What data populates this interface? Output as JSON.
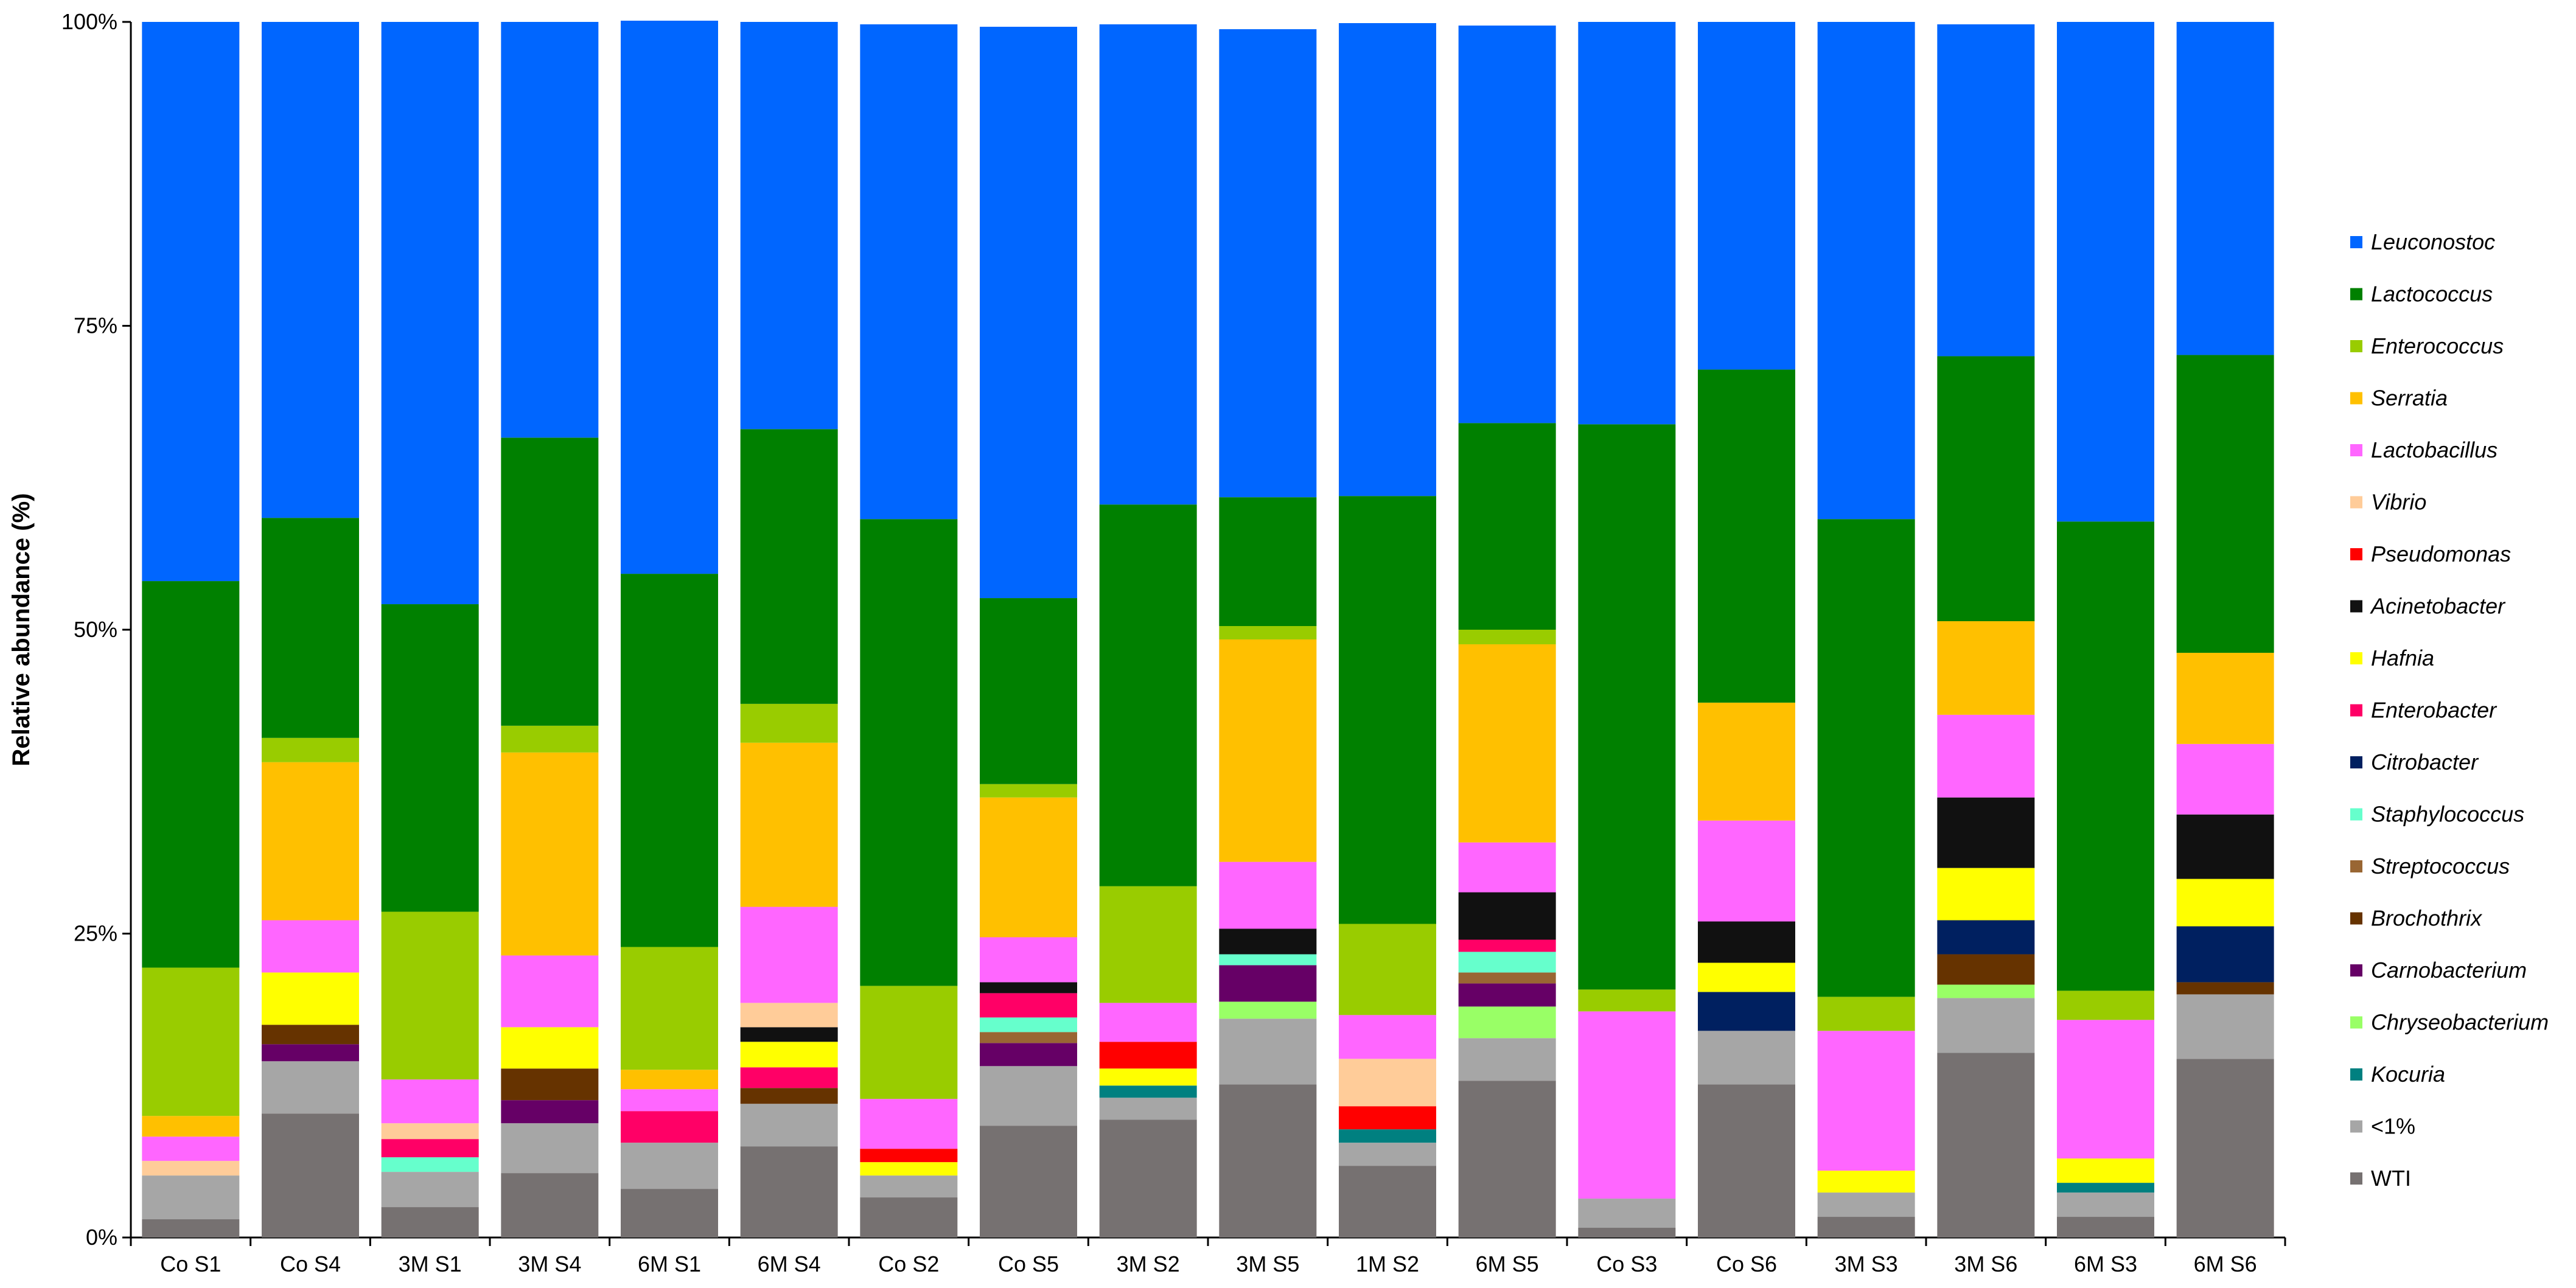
{
  "chart_data": {
    "type": "bar",
    "stacked": true,
    "ylabel": "Relative abundance (%)",
    "ylim": [
      0,
      100
    ],
    "yticks": [
      "0%",
      "25%",
      "50%",
      "75%",
      "100%"
    ],
    "categories": [
      "Co S1",
      "Co S4",
      "3M S1",
      "3M S4",
      "6M S1",
      "6M S4",
      "Co S2",
      "Co S5",
      "3M S2",
      "3M S5",
      "1M S2",
      "6M S5",
      "Co S3",
      "Co S6",
      "3M S3",
      "3M S6",
      "6M S3",
      "6M S6"
    ],
    "legend_position": "right",
    "series": [
      {
        "name": "WTI",
        "italic": false,
        "color": "#767171",
        "values": [
          1.5,
          10.2,
          2.5,
          5.3,
          4.0,
          7.5,
          3.3,
          9.2,
          9.7,
          12.6,
          5.9,
          12.9,
          0.8,
          12.6,
          1.7,
          15.2,
          1.7,
          14.7
        ]
      },
      {
        "name": "<1%",
        "italic": false,
        "color": "#a6a6a6",
        "values": [
          3.6,
          4.3,
          2.9,
          4.1,
          3.8,
          3.5,
          1.8,
          4.9,
          1.8,
          5.4,
          1.9,
          3.5,
          2.4,
          4.4,
          2.0,
          4.5,
          2.0,
          5.3
        ]
      },
      {
        "name": "Kocuria",
        "italic": true,
        "color": "#008080",
        "values": [
          0,
          0,
          0,
          0,
          0,
          0,
          0,
          0,
          1.0,
          0,
          1.1,
          0,
          0,
          0,
          0,
          0,
          0.8,
          0
        ]
      },
      {
        "name": "Chryseobacterium",
        "italic": true,
        "color": "#99ff66",
        "values": [
          0,
          0,
          0,
          0,
          0,
          0,
          0,
          0,
          0,
          1.4,
          0,
          2.6,
          0,
          0,
          0,
          1.1,
          0,
          0
        ]
      },
      {
        "name": "Carnobacterium",
        "italic": true,
        "color": "#660066",
        "values": [
          0,
          1.4,
          0,
          1.9,
          0,
          0,
          0,
          1.9,
          0,
          3.0,
          0,
          1.9,
          0,
          0,
          0,
          0,
          0,
          0
        ]
      },
      {
        "name": "Brochothrix",
        "italic": true,
        "color": "#663300",
        "values": [
          0,
          1.6,
          0,
          2.6,
          0,
          1.3,
          0,
          0,
          0,
          0,
          0,
          0,
          0,
          0,
          0,
          2.5,
          0,
          1.0
        ]
      },
      {
        "name": "Streptococcus",
        "italic": true,
        "color": "#996633",
        "values": [
          0,
          0,
          0,
          0,
          0,
          0,
          0,
          0.9,
          0,
          0,
          0,
          0.9,
          0,
          0,
          0,
          0,
          0,
          0
        ]
      },
      {
        "name": "Staphylococcus",
        "italic": true,
        "color": "#66ffcc",
        "values": [
          0,
          0,
          1.2,
          0,
          0,
          0,
          0,
          1.2,
          0,
          0.9,
          0,
          1.7,
          0,
          0,
          0,
          0,
          0,
          0
        ]
      },
      {
        "name": "Citrobacter",
        "italic": true,
        "color": "#002060",
        "values": [
          0,
          0,
          0,
          0,
          0,
          0,
          0,
          0,
          0,
          0,
          0,
          0,
          0,
          3.2,
          0,
          2.8,
          0,
          4.6
        ]
      },
      {
        "name": "Enterobacter",
        "italic": true,
        "color": "#ff0066",
        "values": [
          0,
          0,
          1.5,
          0,
          2.6,
          1.7,
          0,
          2.0,
          0,
          0,
          0,
          1.0,
          0,
          0,
          0,
          0,
          0,
          0
        ]
      },
      {
        "name": "Hafnia",
        "italic": true,
        "color": "#ffff00",
        "values": [
          0,
          4.3,
          0,
          3.4,
          0,
          2.1,
          1.1,
          0,
          1.4,
          0,
          0,
          0,
          0,
          2.4,
          1.8,
          4.3,
          2.0,
          3.9
        ]
      },
      {
        "name": "Acinetobacter",
        "italic": true,
        "color": "#111111",
        "values": [
          0,
          0,
          0,
          0,
          0,
          1.2,
          0,
          0.9,
          0,
          2.1,
          0,
          3.9,
          0,
          3.4,
          0,
          5.8,
          0,
          5.3
        ]
      },
      {
        "name": "Pseudomonas",
        "italic": true,
        "color": "#ff0000",
        "values": [
          0,
          0,
          0,
          0,
          0,
          0,
          1.1,
          0,
          2.2,
          0,
          1.9,
          0,
          0,
          0,
          0,
          0,
          0,
          0
        ]
      },
      {
        "name": "Vibrio",
        "italic": true,
        "color": "#ffcc99",
        "values": [
          1.2,
          0,
          1.3,
          0,
          0,
          2.0,
          0,
          0,
          0,
          0,
          3.9,
          0,
          0,
          0,
          0,
          0,
          0,
          0
        ]
      },
      {
        "name": "Lactobacillus",
        "italic": true,
        "color": "#ff66ff",
        "values": [
          2.0,
          4.3,
          3.6,
          5.9,
          1.8,
          7.9,
          4.1,
          3.7,
          3.2,
          5.5,
          3.6,
          4.1,
          15.4,
          8.3,
          11.5,
          6.8,
          11.4,
          5.8
        ]
      },
      {
        "name": "Serratia",
        "italic": true,
        "color": "#ffc000",
        "values": [
          1.7,
          13.0,
          0,
          16.7,
          1.6,
          13.5,
          0,
          11.5,
          0,
          18.3,
          0,
          16.3,
          0,
          9.7,
          0,
          7.7,
          0,
          7.5
        ]
      },
      {
        "name": "Enterococcus",
        "italic": true,
        "color": "#99cc00",
        "values": [
          12.2,
          2.0,
          13.8,
          2.2,
          10.1,
          3.2,
          9.3,
          1.1,
          9.6,
          1.1,
          7.5,
          1.2,
          1.8,
          0,
          2.8,
          0,
          2.4,
          0
        ]
      },
      {
        "name": "Lactococcus",
        "italic": true,
        "color": "#008000",
        "values": [
          31.8,
          18.1,
          25.3,
          23.7,
          30.7,
          22.6,
          38.4,
          15.3,
          31.4,
          10.6,
          35.2,
          17.0,
          46.5,
          27.4,
          39.3,
          21.8,
          38.6,
          24.5
        ]
      },
      {
        "name": "Leuconostoc",
        "italic": true,
        "color": "#0066ff",
        "values": [
          46.0,
          40.8,
          47.9,
          34.2,
          45.5,
          33.5,
          40.7,
          47.0,
          39.5,
          38.5,
          38.9,
          32.7,
          33.1,
          28.6,
          40.9,
          27.3,
          41.1,
          27.4
        ]
      }
    ]
  }
}
